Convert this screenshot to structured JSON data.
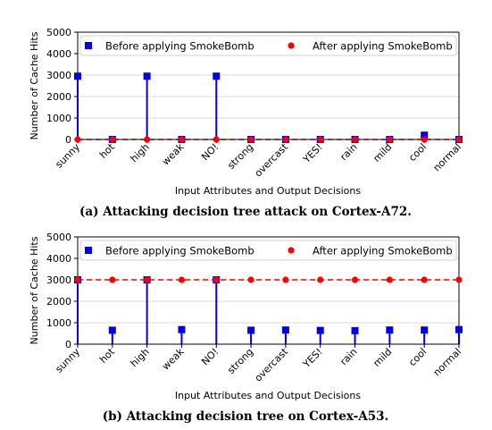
{
  "chart_data": [
    {
      "type": "scatter",
      "caption": "(a) Attacking decision tree attack on Cortex-A72.",
      "categories": [
        "sunny",
        "hot",
        "high",
        "weak",
        "NO!",
        "strong",
        "overcast",
        "YES!",
        "rain",
        "mild",
        "cool",
        "normal"
      ],
      "xlabel": "Input Attributes and Output Decisions",
      "ylabel": "Number of Cache Hits",
      "ylim": [
        0,
        5000
      ],
      "yticks": [
        0,
        1000,
        2000,
        3000,
        4000,
        5000
      ],
      "grid": "horizontal",
      "legend_position": "top",
      "series": [
        {
          "name": "Before applying SmokeBomb",
          "marker": "square",
          "color": "#0000ee",
          "stem": true,
          "values": [
            2950,
            0,
            2950,
            0,
            2950,
            0,
            0,
            0,
            0,
            0,
            200,
            0
          ]
        },
        {
          "name": "After applying SmokeBomb",
          "marker": "circle",
          "color": "#ff0000",
          "dashed_line": true,
          "values": [
            0,
            0,
            0,
            0,
            0,
            0,
            0,
            0,
            0,
            0,
            0,
            0
          ]
        }
      ]
    },
    {
      "type": "scatter",
      "caption": "(b) Attacking decision tree on Cortex-A53.",
      "categories": [
        "sunny",
        "hot",
        "high",
        "weak",
        "NO!",
        "strong",
        "overcast",
        "YES!",
        "rain",
        "mild",
        "cool",
        "normal"
      ],
      "xlabel": "Input Attributes and Output Decisions",
      "ylabel": "Number of Cache Hits",
      "ylim": [
        0,
        5000
      ],
      "yticks": [
        0,
        1000,
        2000,
        3000,
        4000,
        5000
      ],
      "grid": "horizontal",
      "legend_position": "top",
      "series": [
        {
          "name": "Before applying SmokeBomb",
          "marker": "square",
          "color": "#0000ee",
          "stem": true,
          "values": [
            3000,
            650,
            3000,
            680,
            3000,
            650,
            660,
            640,
            630,
            660,
            660,
            680
          ]
        },
        {
          "name": "After applying SmokeBomb",
          "marker": "circle",
          "color": "#ff0000",
          "dashed_line": true,
          "values": [
            3000,
            3000,
            3000,
            3000,
            3000,
            3000,
            3000,
            3000,
            3000,
            3000,
            3000,
            3000
          ]
        }
      ]
    }
  ]
}
